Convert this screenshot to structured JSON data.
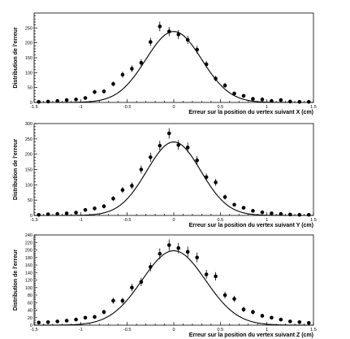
{
  "chart_data": [
    {
      "type": "scatter",
      "xlabel": "Erreur sur la position du vertex suivant X (cm)",
      "ylabel": "Distribution de l'erreur",
      "xlim": [
        -1.5,
        1.5
      ],
      "ylim": [
        0,
        300
      ],
      "xticks": [
        -1.5,
        -1,
        -0.5,
        0,
        0.5,
        1,
        1.5
      ],
      "xtick_labels": [
        "-1.5",
        "-1",
        "-0.5",
        "0",
        "0.5",
        "1",
        "1.5"
      ],
      "yticks": [
        0,
        50,
        100,
        150,
        200,
        250
      ],
      "ytick_labels": [
        "0",
        "50",
        "100",
        "150",
        "200",
        "250"
      ],
      "x": [
        -1.45,
        -1.35,
        -1.25,
        -1.15,
        -1.05,
        -0.95,
        -0.85,
        -0.75,
        -0.65,
        -0.55,
        -0.45,
        -0.35,
        -0.25,
        -0.15,
        -0.05,
        0.05,
        0.15,
        0.25,
        0.35,
        0.45,
        0.55,
        0.65,
        0.75,
        0.85,
        0.95,
        1.05,
        1.15,
        1.25,
        1.35,
        1.45
      ],
      "y": [
        2,
        3,
        5,
        8,
        10,
        15,
        35,
        37,
        62,
        93,
        113,
        133,
        203,
        255,
        238,
        228,
        210,
        177,
        128,
        80,
        57,
        30,
        22,
        12,
        10,
        5,
        8,
        3,
        2,
        2
      ],
      "yerr": [
        2,
        2,
        3,
        3,
        4,
        5,
        7,
        7,
        8,
        10,
        11,
        12,
        14,
        16,
        15,
        15,
        14,
        13,
        11,
        9,
        8,
        6,
        5,
        4,
        4,
        3,
        3,
        2,
        2,
        2
      ],
      "fit": {
        "type": "gaussian",
        "amplitude": 238,
        "mean": 0.0,
        "sigma": 0.3
      }
    },
    {
      "type": "scatter",
      "xlabel": "Erreur sur la position du vertex suivant Y (cm)",
      "ylabel": "Distribution de l'erreur",
      "xlim": [
        -1.5,
        1.5
      ],
      "ylim": [
        0,
        300
      ],
      "xticks": [
        -1.5,
        -1,
        -0.5,
        0,
        0.5,
        1,
        1.5
      ],
      "xtick_labels": [
        "-1.5",
        "-1",
        "-0.5",
        "0",
        "0.5",
        "1",
        "1.5"
      ],
      "yticks": [
        0,
        50,
        100,
        150,
        200,
        250,
        300
      ],
      "ytick_labels": [
        "0",
        "50",
        "100",
        "150",
        "200",
        "250",
        "300"
      ],
      "x": [
        -1.45,
        -1.35,
        -1.25,
        -1.15,
        -1.05,
        -0.95,
        -0.85,
        -0.75,
        -0.65,
        -0.55,
        -0.45,
        -0.35,
        -0.25,
        -0.15,
        -0.05,
        0.05,
        0.15,
        0.25,
        0.35,
        0.45,
        0.55,
        0.65,
        0.75,
        0.85,
        0.95,
        1.05,
        1.15,
        1.25,
        1.35,
        1.45
      ],
      "y": [
        2,
        4,
        5,
        7,
        9,
        18,
        23,
        30,
        55,
        83,
        97,
        150,
        190,
        228,
        268,
        230,
        222,
        180,
        125,
        108,
        60,
        35,
        25,
        15,
        10,
        7,
        5,
        3,
        2,
        2
      ],
      "yerr": [
        2,
        2,
        3,
        3,
        4,
        5,
        6,
        7,
        8,
        10,
        11,
        13,
        15,
        16,
        17,
        16,
        16,
        14,
        12,
        11,
        8,
        6,
        5,
        4,
        4,
        3,
        3,
        2,
        2,
        2
      ],
      "fit": {
        "type": "gaussian",
        "amplitude": 240,
        "mean": 0.0,
        "sigma": 0.29
      }
    },
    {
      "type": "scatter",
      "xlabel": "Erreur sur la position du vertex suivant Z (cm)",
      "ylabel": "Distribution de l'erreur",
      "xlim": [
        -1.5,
        1.5
      ],
      "ylim": [
        0,
        240
      ],
      "xticks": [
        -1.5,
        -1,
        -0.5,
        0,
        0.5,
        1,
        1.5
      ],
      "xtick_labels": [
        "-1.5",
        "-1",
        "-0.5",
        "0",
        "0.5",
        "1",
        "1.5"
      ],
      "yticks": [
        0,
        20,
        40,
        60,
        80,
        100,
        120,
        140,
        160,
        180,
        200,
        220,
        240
      ],
      "ytick_labels": [
        "0",
        "20",
        "40",
        "60",
        "80",
        "100",
        "120",
        "140",
        "160",
        "180",
        "200",
        "220",
        "240"
      ],
      "x": [
        -1.45,
        -1.35,
        -1.25,
        -1.15,
        -1.05,
        -0.95,
        -0.85,
        -0.75,
        -0.65,
        -0.55,
        -0.45,
        -0.35,
        -0.25,
        -0.15,
        -0.05,
        0.05,
        0.15,
        0.25,
        0.35,
        0.45,
        0.55,
        0.65,
        0.75,
        0.85,
        0.95,
        1.05,
        1.15,
        1.25,
        1.35,
        1.45
      ],
      "y": [
        7,
        8,
        10,
        12,
        15,
        20,
        22,
        35,
        65,
        65,
        100,
        115,
        155,
        190,
        213,
        205,
        195,
        180,
        135,
        130,
        80,
        70,
        42,
        35,
        25,
        20,
        15,
        10,
        8,
        6
      ],
      "yerr": [
        3,
        3,
        3,
        4,
        4,
        5,
        5,
        6,
        8,
        8,
        10,
        11,
        12,
        14,
        15,
        14,
        14,
        13,
        12,
        11,
        9,
        8,
        7,
        6,
        5,
        4,
        4,
        3,
        3,
        3
      ],
      "fit": {
        "type": "gaussian",
        "amplitude": 198,
        "mean": 0.0,
        "sigma": 0.34
      }
    }
  ]
}
